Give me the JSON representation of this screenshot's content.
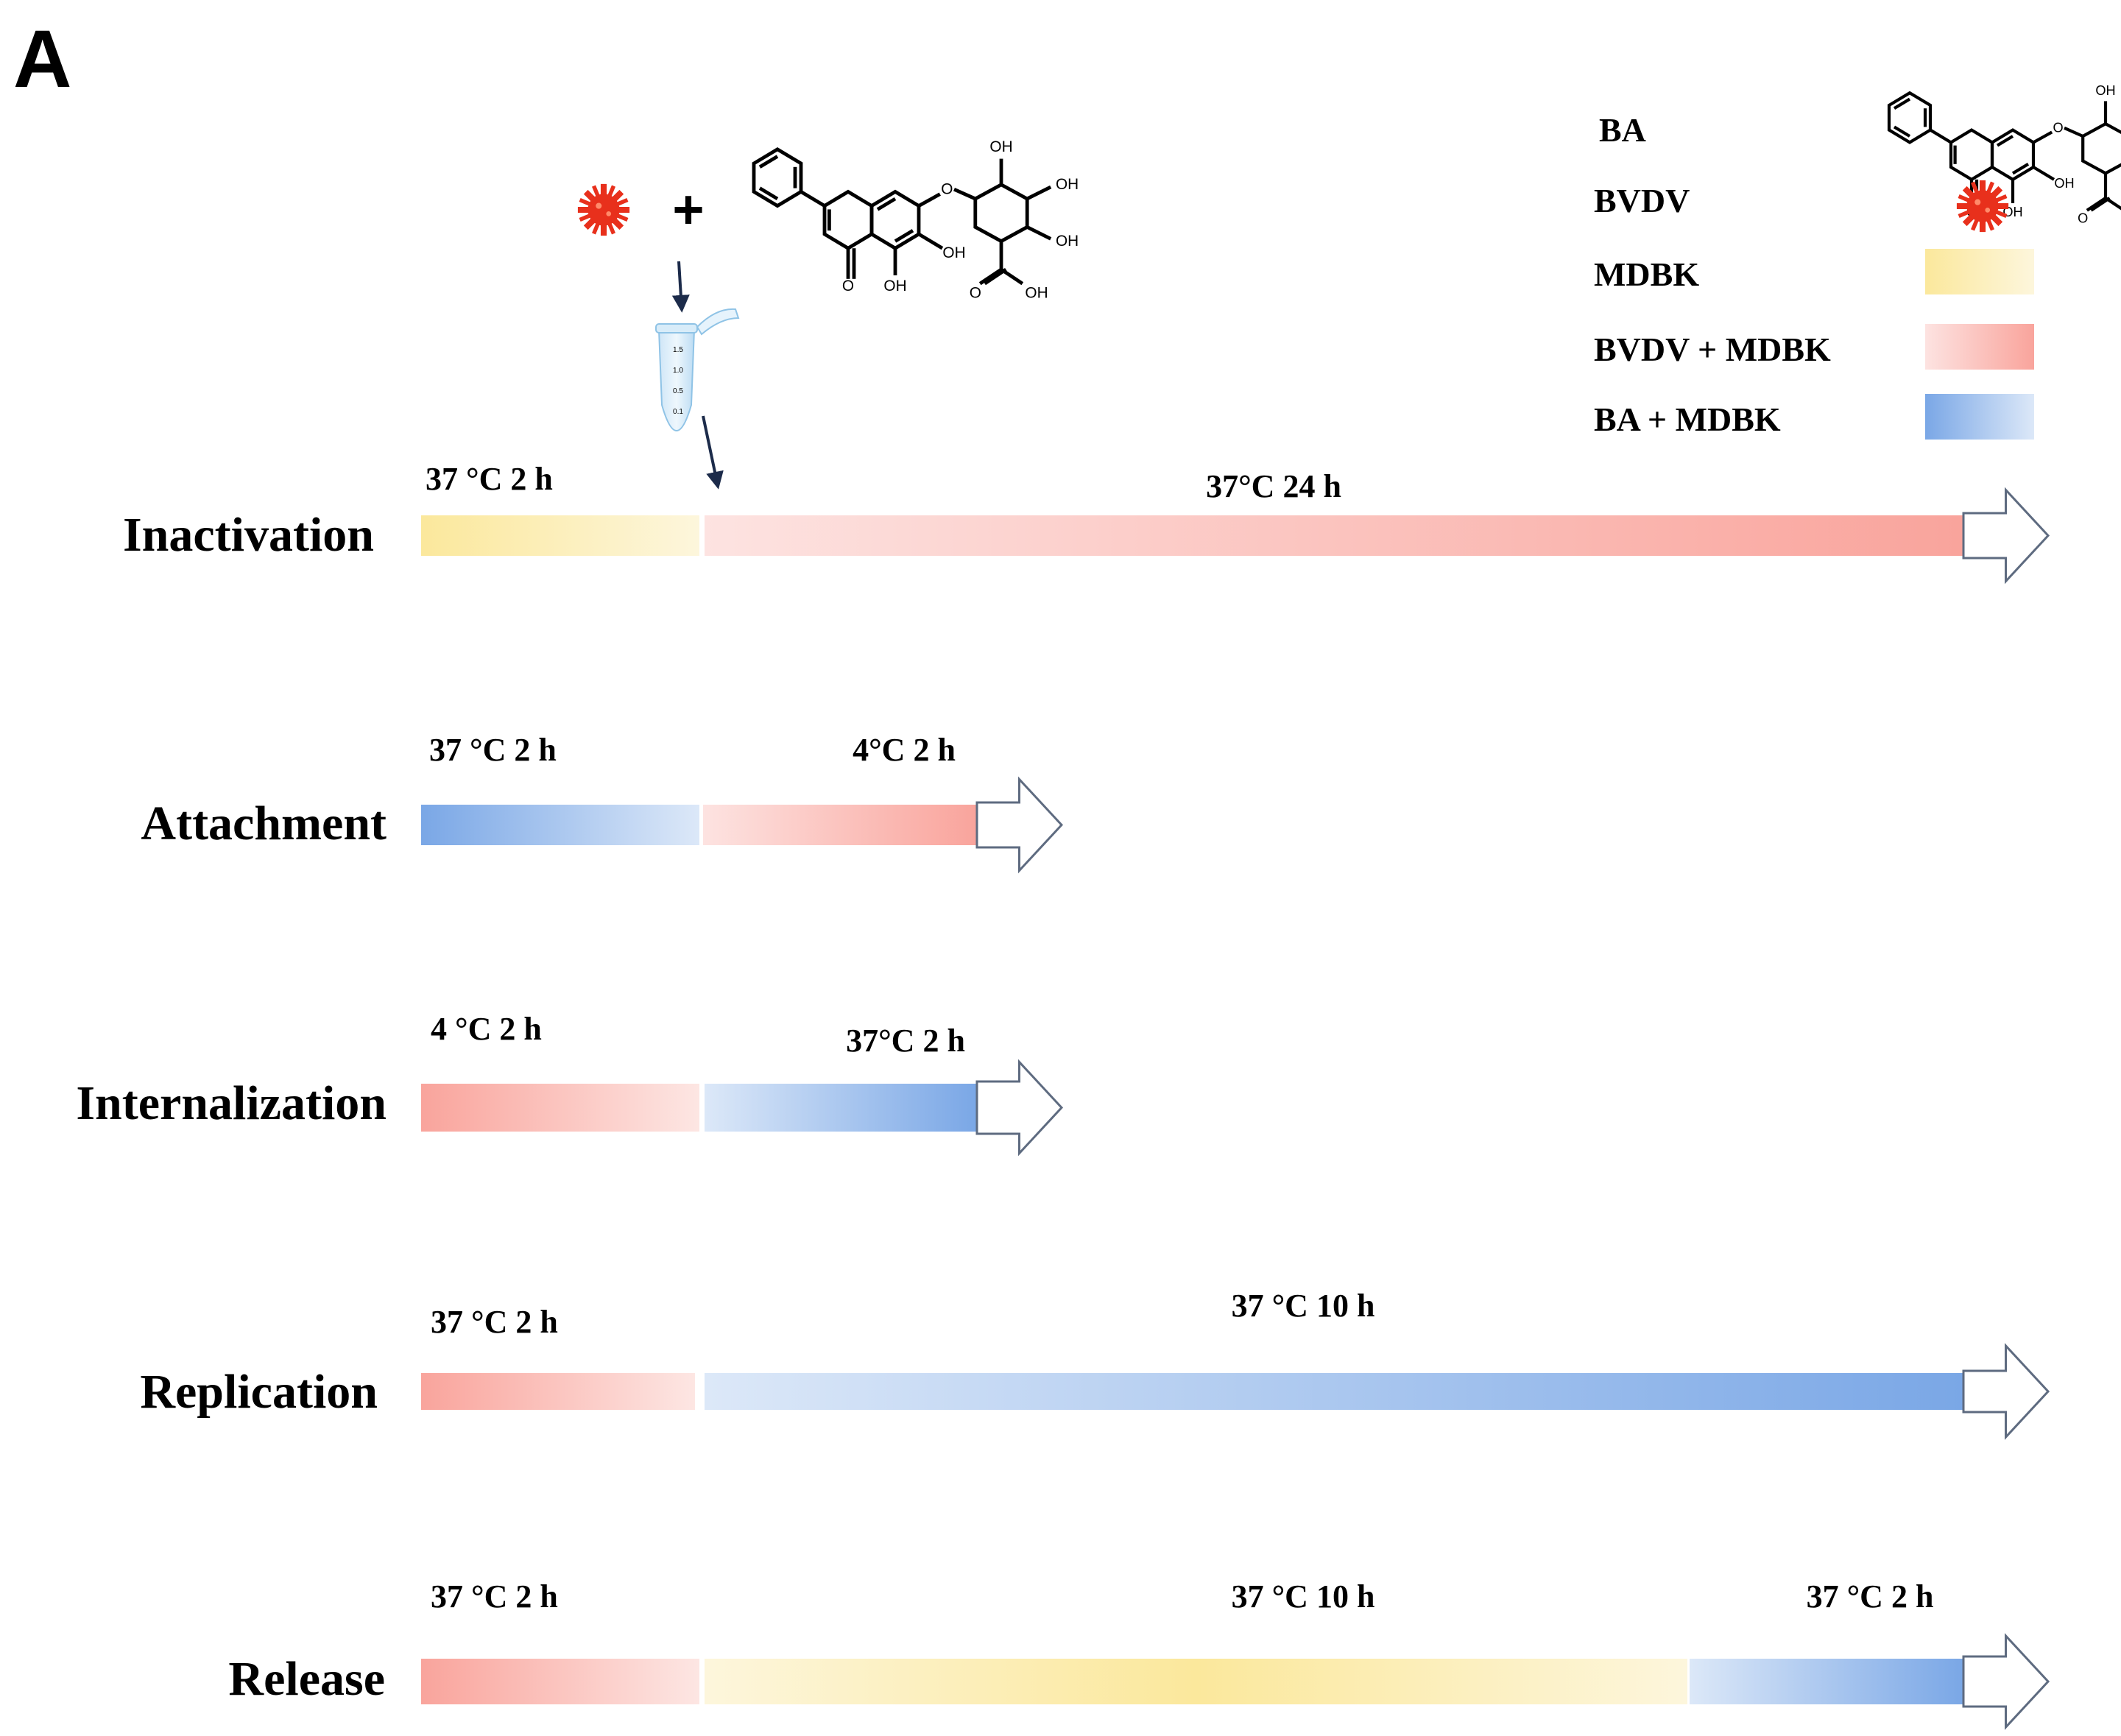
{
  "panel_label": "A",
  "colors": {
    "mdbk": "#fbe9a3",
    "bvdv_mdbk": "#f9a49c",
    "ba_mdbk": "#7aa7e6",
    "virus": "#e8301c",
    "arrow_dark": "#1c2b4a"
  },
  "icons": {
    "virus": "virus-icon",
    "compound": "baicalin-structure",
    "tube": "microcentrifuge-tube-icon"
  },
  "plus_sign": "+",
  "chem_labels": {
    "oh": "OH",
    "o": "O"
  },
  "tube_marks": [
    "1.5",
    "1.0",
    "0.5",
    "0.1"
  ],
  "legend": {
    "ba": "BA",
    "bvdv": "BVDV",
    "mdbk": "MDBK",
    "bvdv_mdbk": "BVDV + MDBK",
    "ba_mdbk": "BA + MDBK"
  },
  "rows": [
    {
      "label": "Inactivation",
      "segments": [
        {
          "condition": "37 °C 2 h",
          "hours": 2
        },
        {
          "condition": "37°C 24 h",
          "hours": 24
        }
      ]
    },
    {
      "label": "Attachment",
      "segments": [
        {
          "condition": "37 °C 2 h",
          "hours": 2
        },
        {
          "condition": "4°C 2 h",
          "hours": 2
        }
      ]
    },
    {
      "label": "Internalization",
      "segments": [
        {
          "condition": "4 °C 2 h",
          "hours": 2
        },
        {
          "condition": "37°C 2 h",
          "hours": 2
        }
      ]
    },
    {
      "label": "Replication",
      "segments": [
        {
          "condition": "37 °C 2 h",
          "hours": 2
        },
        {
          "condition": "37 °C 10 h",
          "hours": 10
        }
      ]
    },
    {
      "label": "Release",
      "segments": [
        {
          "condition": "37 °C 2 h",
          "hours": 2
        },
        {
          "condition": "37 °C 10 h",
          "hours": 10
        },
        {
          "condition": "37 °C 2 h",
          "hours": 2
        }
      ]
    }
  ]
}
